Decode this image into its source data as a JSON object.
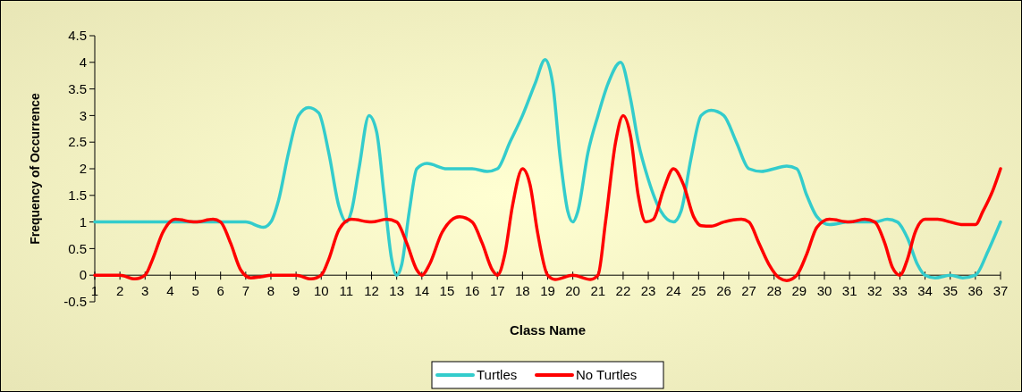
{
  "chart_data": {
    "type": "line",
    "xlabel": "Class Name",
    "ylabel": "Frequency of Occurrence",
    "xlim": [
      1,
      37
    ],
    "xticks": [
      1,
      2,
      3,
      4,
      5,
      6,
      7,
      8,
      9,
      10,
      11,
      12,
      13,
      14,
      15,
      16,
      17,
      18,
      19,
      20,
      21,
      22,
      23,
      24,
      25,
      26,
      27,
      28,
      29,
      30,
      31,
      32,
      33,
      34,
      35,
      36,
      37
    ],
    "ylim": [
      -0.5,
      4.5
    ],
    "yticks": [
      -0.5,
      0,
      0.5,
      1,
      1.5,
      2,
      2.5,
      3,
      3.5,
      4,
      4.5
    ],
    "grid": false,
    "legend": "bottom",
    "marker": "none",
    "line_style": "solid",
    "series": [
      {
        "name": "Turtles",
        "color": "#33cccc",
        "x": [
          1,
          7,
          7.7,
          8,
          8.3,
          8.7,
          9.1,
          9.5,
          9.9,
          10.3,
          10.7,
          11,
          11.2,
          11.5,
          11.9,
          12.2,
          12.5,
          12.8,
          13,
          13.2,
          13.5,
          13.8,
          14.2,
          15,
          16,
          16.6,
          17,
          17.5,
          18,
          18.5,
          18.9,
          19.2,
          19.5,
          19.8,
          20,
          20.2,
          20.6,
          21,
          21.4,
          21.9,
          22.3,
          22.6,
          23,
          23.5,
          24,
          24.3,
          24.7,
          25.1,
          25.5,
          26,
          26.5,
          27,
          27.5,
          28,
          28.5,
          28.9,
          29.3,
          29.7,
          30.2,
          31,
          32,
          32.5,
          32.9,
          33.3,
          33.7,
          34,
          34.4,
          35,
          35.5,
          36,
          36.5,
          37
        ],
        "values": [
          1,
          1,
          0.9,
          1,
          1.4,
          2.3,
          3,
          3.15,
          3.05,
          2.3,
          1.3,
          1,
          1.2,
          2,
          3,
          2.7,
          1.5,
          0.3,
          0,
          0.2,
          1.2,
          2,
          2.1,
          2,
          2,
          1.95,
          2,
          2.5,
          3,
          3.6,
          4.05,
          3.6,
          2.2,
          1.2,
          1,
          1.2,
          2.3,
          3,
          3.6,
          4,
          3.3,
          2.5,
          1.8,
          1.2,
          1,
          1.2,
          2.2,
          3,
          3.1,
          3,
          2.5,
          2,
          1.95,
          2,
          2.05,
          2,
          1.5,
          1.1,
          0.95,
          1,
          1,
          1.05,
          1,
          0.7,
          0.2,
          0,
          -0.05,
          0,
          -0.05,
          0,
          0.45,
          1
        ]
      },
      {
        "name": "No Turtles",
        "color": "#ff0000",
        "x": [
          1,
          2,
          2.6,
          3,
          3.3,
          3.7,
          4.2,
          5,
          5.7,
          6,
          6.4,
          6.8,
          7.2,
          7.6,
          8,
          9,
          9.6,
          10,
          10.3,
          10.7,
          11.2,
          12,
          12.6,
          13,
          13.4,
          13.8,
          14,
          14.3,
          14.8,
          15.5,
          16,
          16.4,
          16.8,
          17,
          17.3,
          17.6,
          18,
          18.3,
          18.6,
          19,
          19.3,
          20,
          20.7,
          21,
          21.3,
          21.7,
          22,
          22.3,
          22.6,
          22.9,
          23.2,
          23.6,
          24,
          24.4,
          24.8,
          25.1,
          25.5,
          26,
          26.7,
          27,
          27.4,
          27.8,
          28.2,
          28.5,
          28.9,
          29.3,
          29.7,
          30.2,
          31,
          31.6,
          32,
          32.4,
          32.7,
          33,
          33.3,
          33.6,
          34,
          34.5,
          35,
          35.5,
          36,
          36.3,
          36.7,
          37
        ],
        "values": [
          0,
          0,
          -0.07,
          0,
          0.3,
          0.8,
          1.05,
          1,
          1.05,
          1,
          0.6,
          0.1,
          -0.05,
          -0.03,
          0,
          0,
          -0.07,
          0,
          0.3,
          0.85,
          1.05,
          1,
          1.05,
          1,
          0.6,
          0.1,
          0,
          0.2,
          0.8,
          1.1,
          1,
          0.6,
          0.1,
          0,
          0.4,
          1.3,
          2,
          1.7,
          0.8,
          0,
          -0.08,
          0,
          -0.08,
          0,
          1,
          2.5,
          3,
          2.6,
          1.5,
          1,
          1.05,
          1.6,
          2,
          1.7,
          1.1,
          0.93,
          0.92,
          1,
          1.05,
          1,
          0.6,
          0.2,
          -0.05,
          -0.1,
          0,
          0.4,
          0.9,
          1.05,
          1,
          1.05,
          1,
          0.6,
          0.15,
          0,
          0.3,
          0.8,
          1.05,
          1.05,
          1,
          0.95,
          0.95,
          1.2,
          1.6,
          2
        ]
      }
    ]
  }
}
